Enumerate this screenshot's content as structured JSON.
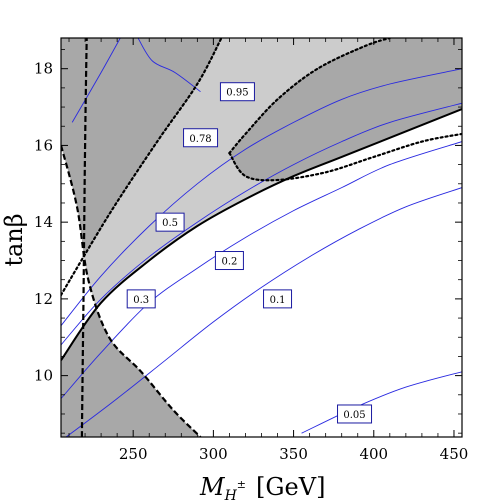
{
  "chart_data": {
    "type": "contour",
    "xlabel_main": "M",
    "xlabel_sub": "H",
    "xlabel_sup": "±",
    "xlabel_unit": "[GeV]",
    "ylabel": "tanβ",
    "xlim": [
      205,
      455
    ],
    "ylim": [
      8.4,
      18.8
    ],
    "x_ticks": [
      250,
      300,
      350,
      400,
      450
    ],
    "y_ticks": [
      10,
      12,
      14,
      16,
      18
    ],
    "x_tick_labels": [
      "250",
      "300",
      "350",
      "400",
      "450"
    ],
    "y_tick_labels": [
      "10",
      "12",
      "14",
      "16",
      "18"
    ],
    "colors": {
      "excluded_dark": "#a8a8a8",
      "excluded_light": "#cccccc",
      "allowed": "#ffffff",
      "contour": "#2a2ae0",
      "boundary": "#000000"
    },
    "contour_lines": [
      {
        "label": "0.05",
        "points": [
          [
            355,
            8.5
          ],
          [
            390,
            9.2
          ],
          [
            420,
            9.7
          ],
          [
            455,
            10.1
          ]
        ],
        "label_at": [
          388,
          9.0
        ]
      },
      {
        "label": "0.1",
        "points": [
          [
            205,
            8.3
          ],
          [
            240,
            9.4
          ],
          [
            270,
            10.4
          ],
          [
            300,
            11.4
          ],
          [
            330,
            12.3
          ],
          [
            360,
            13.1
          ],
          [
            390,
            13.8
          ],
          [
            420,
            14.4
          ],
          [
            455,
            14.9
          ]
        ],
        "label_at": [
          340,
          12.0
        ]
      },
      {
        "label": "0.2",
        "points": [
          [
            205,
            9.4
          ],
          [
            230,
            10.6
          ],
          [
            260,
            11.9
          ],
          [
            290,
            12.8
          ],
          [
            320,
            13.6
          ],
          [
            350,
            14.3
          ],
          [
            380,
            14.9
          ],
          [
            410,
            15.5
          ],
          [
            455,
            16.1
          ]
        ],
        "label_at": [
          310,
          13.0
        ]
      },
      {
        "label": "0.3",
        "points": [
          [
            205,
            10.8
          ],
          [
            230,
            12.0
          ],
          [
            260,
            13.1
          ],
          [
            290,
            14.0
          ],
          [
            320,
            14.8
          ],
          [
            350,
            15.5
          ],
          [
            380,
            16.1
          ],
          [
            410,
            16.6
          ],
          [
            455,
            17.1
          ]
        ],
        "label_at": [
          255,
          12.0
        ]
      },
      {
        "label": "0.5",
        "points": [
          [
            205,
            11.3
          ],
          [
            230,
            12.6
          ],
          [
            260,
            13.9
          ],
          [
            290,
            15.0
          ],
          [
            320,
            15.9
          ],
          [
            350,
            16.6
          ],
          [
            380,
            17.2
          ],
          [
            410,
            17.6
          ],
          [
            455,
            18.0
          ]
        ],
        "label_at": [
          273,
          14.0
        ]
      },
      {
        "label": "0.78",
        "points": [
          [
            212,
            16.6
          ],
          [
            230,
            17.9
          ],
          [
            242,
            18.8
          ]
        ],
        "label_at": [
          292,
          16.2
        ]
      },
      {
        "label": "0.95",
        "points": [
          [
            253,
            18.8
          ],
          [
            262,
            18.2
          ],
          [
            276,
            17.9
          ],
          [
            292,
            17.4
          ]
        ],
        "label_at": [
          315,
          17.4
        ]
      }
    ],
    "boundaries": [
      {
        "style": "solid",
        "points": [
          [
            205,
            10.4
          ],
          [
            230,
            11.9
          ],
          [
            260,
            13.0
          ],
          [
            290,
            13.9
          ],
          [
            320,
            14.6
          ],
          [
            350,
            15.2
          ],
          [
            380,
            15.7
          ],
          [
            410,
            16.2
          ],
          [
            455,
            16.95
          ]
        ]
      },
      {
        "style": "dotted",
        "points": [
          [
            205,
            12.1
          ],
          [
            235,
            14.2
          ],
          [
            265,
            16.1
          ],
          [
            290,
            17.6
          ],
          [
            305,
            18.8
          ]
        ]
      },
      {
        "style": "dotted",
        "points": [
          [
            310,
            15.8
          ],
          [
            320,
            16.3
          ],
          [
            340,
            17.2
          ],
          [
            365,
            18.0
          ],
          [
            395,
            18.6
          ],
          [
            410,
            18.8
          ]
        ]
      },
      {
        "style": "dotted",
        "points": [
          [
            310,
            15.8
          ],
          [
            320,
            15.2
          ],
          [
            340,
            15.1
          ],
          [
            370,
            15.3
          ],
          [
            400,
            15.7
          ],
          [
            430,
            16.1
          ],
          [
            455,
            16.3
          ]
        ]
      },
      {
        "style": "dashed",
        "points": [
          [
            205,
            16.0
          ],
          [
            215,
            14.4
          ],
          [
            222,
            12.5
          ],
          [
            235,
            11.0
          ],
          [
            255,
            10.1
          ],
          [
            275,
            9.1
          ],
          [
            292,
            8.4
          ]
        ]
      },
      {
        "style": "dashed",
        "points": [
          [
            218,
            8.4
          ],
          [
            219,
            12.0
          ],
          [
            220,
            16.0
          ],
          [
            221,
            18.8
          ]
        ]
      }
    ]
  }
}
